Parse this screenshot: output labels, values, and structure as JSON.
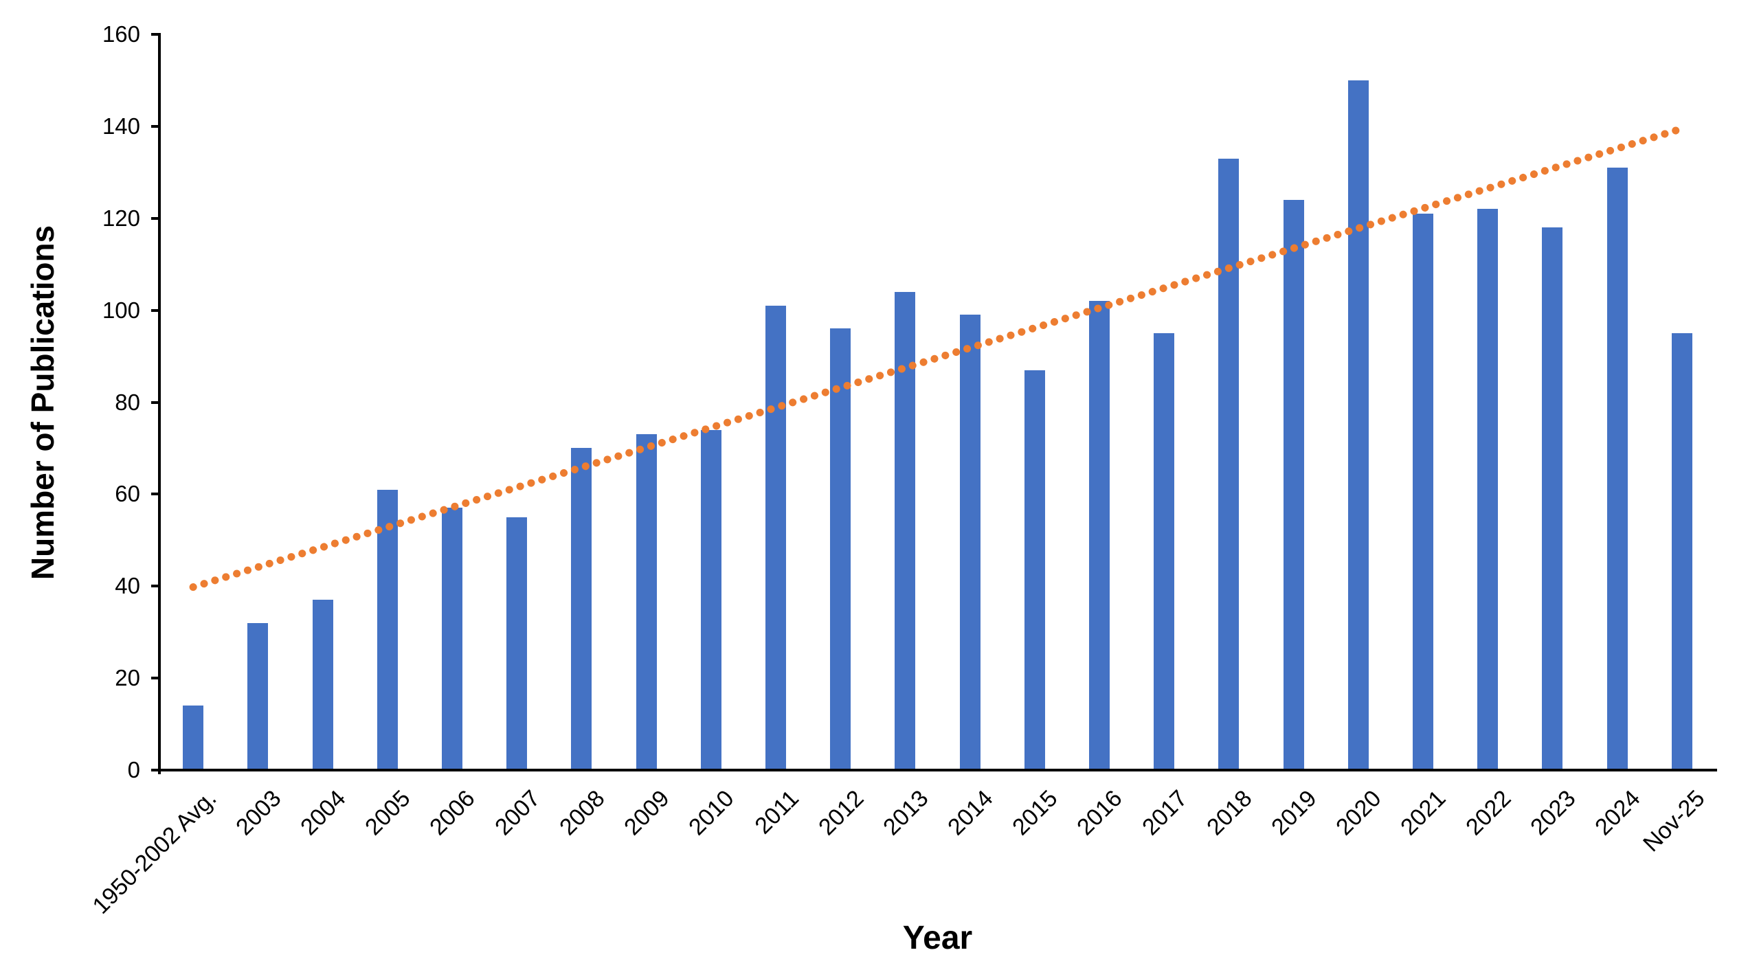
{
  "chart_data": {
    "type": "bar",
    "title": "",
    "xlabel": "Year",
    "ylabel": "Number of Publications",
    "categories": [
      "1950-2002 Avg.",
      "2003",
      "2004",
      "2005",
      "2006",
      "2007",
      "2008",
      "2009",
      "2010",
      "2011",
      "2012",
      "2013",
      "2014",
      "2015",
      "2016",
      "2017",
      "2018",
      "2019",
      "2020",
      "2021",
      "2022",
      "2023",
      "2024",
      "Nov-25"
    ],
    "values": [
      14,
      32,
      37,
      61,
      57,
      55,
      70,
      73,
      74,
      101,
      96,
      104,
      99,
      87,
      102,
      95,
      133,
      124,
      150,
      121,
      122,
      118,
      131,
      95
    ],
    "ylim": [
      0,
      160
    ],
    "yticks": [
      0,
      20,
      40,
      60,
      80,
      100,
      120,
      140,
      160
    ],
    "grid": false,
    "legend": false,
    "bar_color": "#4472C4",
    "axis_color": "#000000",
    "text_color": "#000000",
    "trendline": {
      "type": "linear",
      "style": "dotted",
      "color": "#ED7D31",
      "start_value": 39.8,
      "end_value": 139.5,
      "start_category_index": 0,
      "end_category_index": 23
    }
  }
}
